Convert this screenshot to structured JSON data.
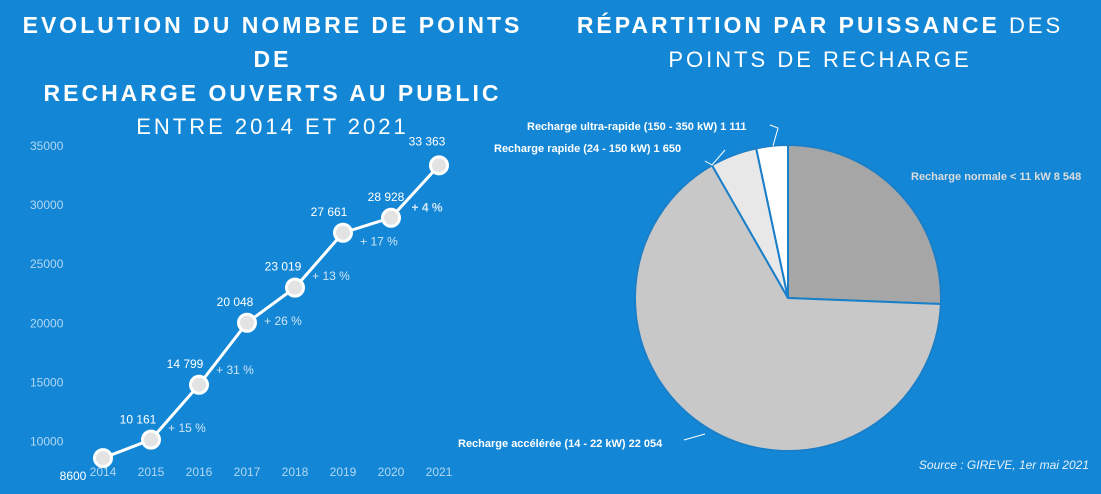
{
  "left_chart": {
    "title_line1": "EVOLUTION DU NOMBRE DE POINTS DE",
    "title_line2": "RECHARGE OUVERTS AU PUBLIC",
    "title_line3": "ENTRE 2014 ET 2021"
  },
  "right_chart": {
    "title_bold": "RÉPARTITION PAR PUISSANCE",
    "title_light": " DES",
    "title_line2": "POINTS DE RECHARGE"
  },
  "source": "Source : GIREVE, 1er mai 2021",
  "colors": {
    "background": "#1387d6",
    "line": "#ffffff",
    "axis_text": "#b3d7f2",
    "growth_text": "#cfe6f7",
    "slice_normale": "#a6a6a6",
    "slice_acceleree": "#c8c8c8",
    "slice_rapide": "#e8e8e8",
    "slice_ultra": "#ffffff"
  },
  "chart_data": [
    {
      "type": "line",
      "x": [
        "2014",
        "2015",
        "2016",
        "2017",
        "2018",
        "2019",
        "2020",
        "2021"
      ],
      "values": [
        8600,
        10161,
        14799,
        20048,
        23019,
        27661,
        28928,
        33363
      ],
      "point_labels": [
        "8600",
        "10 161",
        "14 799",
        "20 048",
        "23 019",
        "27 661",
        "28 928",
        "33 363"
      ],
      "growth_labels": [
        "+ 15 %",
        "+ 31 %",
        "+ 26 %",
        "+ 13 %",
        "+ 17 %",
        "+ 4 %"
      ],
      "yticks": [
        "35000",
        "30000",
        "25000",
        "20000",
        "15000",
        "10000"
      ],
      "ylim": [
        7000,
        35000
      ],
      "grid": false
    },
    {
      "type": "pie",
      "slices": [
        {
          "label": "Recharge normale < 11 kW 8 548",
          "value": 8548
        },
        {
          "label": "Recharge accélérée (14 - 22 kW) 22 054",
          "value": 22054
        },
        {
          "label": "Recharge rapide (24 - 150 kW) 1 650",
          "value": 1650
        },
        {
          "label": "Recharge ultra-rapide (150 - 350 kW) 1 111",
          "value": 1111
        }
      ]
    }
  ]
}
